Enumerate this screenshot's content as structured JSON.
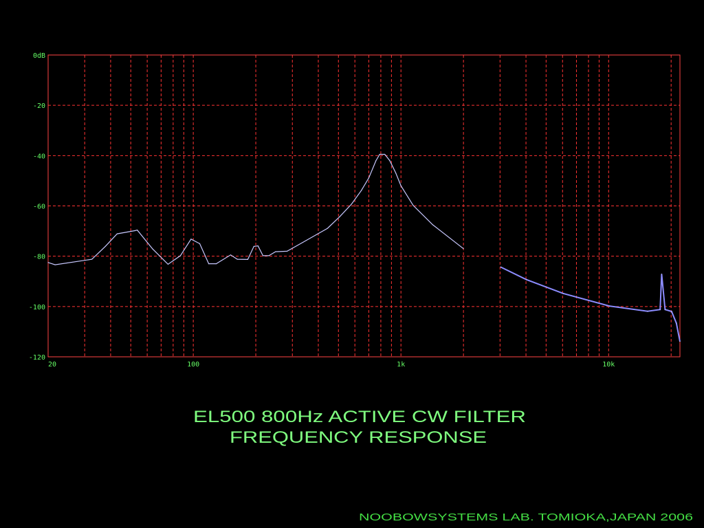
{
  "chart_data": {
    "type": "line",
    "title_line1": "EL500 800Hz ACTIVE CW FILTER",
    "title_line2": "FREQUENCY RESPONSE",
    "footer": "NOOBOWSYSTEMS LAB. TOMIOKA,JAPAN 2006",
    "xscale": "log",
    "xlim": [
      20,
      22050
    ],
    "ylim": [
      -120,
      0
    ],
    "grid": true,
    "x_tick_labels": [
      {
        "value": 20,
        "label": "20"
      },
      {
        "value": 100,
        "label": "100"
      },
      {
        "value": 1000,
        "label": "1k"
      },
      {
        "value": 10000,
        "label": "10k"
      }
    ],
    "y_tick_labels": [
      {
        "value": 0,
        "label": "0dB"
      },
      {
        "value": -20,
        "label": "-20"
      },
      {
        "value": -40,
        "label": "-40"
      },
      {
        "value": -60,
        "label": "-60"
      },
      {
        "value": -80,
        "label": "-80"
      },
      {
        "value": -100,
        "label": "-100"
      },
      {
        "value": -120,
        "label": "-120"
      }
    ],
    "x_grid": [
      30,
      40,
      50,
      60,
      70,
      80,
      90,
      100,
      200,
      300,
      400,
      500,
      600,
      700,
      800,
      900,
      1000,
      2000,
      3000,
      4000,
      5000,
      6000,
      7000,
      8000,
      9000,
      10000,
      20000
    ],
    "y_grid": [
      -20,
      -40,
      -60,
      -80,
      -100
    ],
    "colors": {
      "grid": "#ff3333",
      "frame": "#ff4444",
      "trace": "#c8c8ff",
      "trace_hf": "#8c8cff",
      "text": "#80ff80"
    },
    "series": [
      {
        "name": "response",
        "x": [
          20,
          21.6,
          32.5,
          37.7,
          43,
          52.6,
          53.7,
          63.7,
          75.6,
          86.7,
          97.6,
          107.4,
          118.7,
          129,
          151.3,
          163,
          183,
          195.8,
          205,
          216.5,
          231,
          249,
          283,
          337,
          398,
          443,
          507,
          578,
          644,
          700,
          758,
          790,
          836,
          883,
          945,
          1000,
          1145,
          1422,
          2000,
          3020,
          4020,
          6040,
          10080,
          15400,
          17700,
          18000,
          18700,
          20100,
          21200,
          22050
        ],
        "y": [
          -82.5,
          -83.4,
          -81.2,
          -76.1,
          -71.1,
          -69.8,
          -69.6,
          -77.1,
          -83.2,
          -79.8,
          -73.2,
          -75,
          -83,
          -83,
          -79.5,
          -81.2,
          -81.3,
          -76.1,
          -75.9,
          -79.8,
          -79.8,
          -78.2,
          -78,
          -74.5,
          -71.1,
          -68.9,
          -64.3,
          -59.3,
          -53.9,
          -48.9,
          -42,
          -39.5,
          -39.5,
          -42,
          -47,
          -52,
          -59.8,
          -67.5,
          -77,
          -84.3,
          -89.3,
          -94.8,
          -99.8,
          -101.9,
          -101.2,
          -87.1,
          -101.2,
          -102,
          -106.6,
          -113.9
        ]
      }
    ]
  }
}
